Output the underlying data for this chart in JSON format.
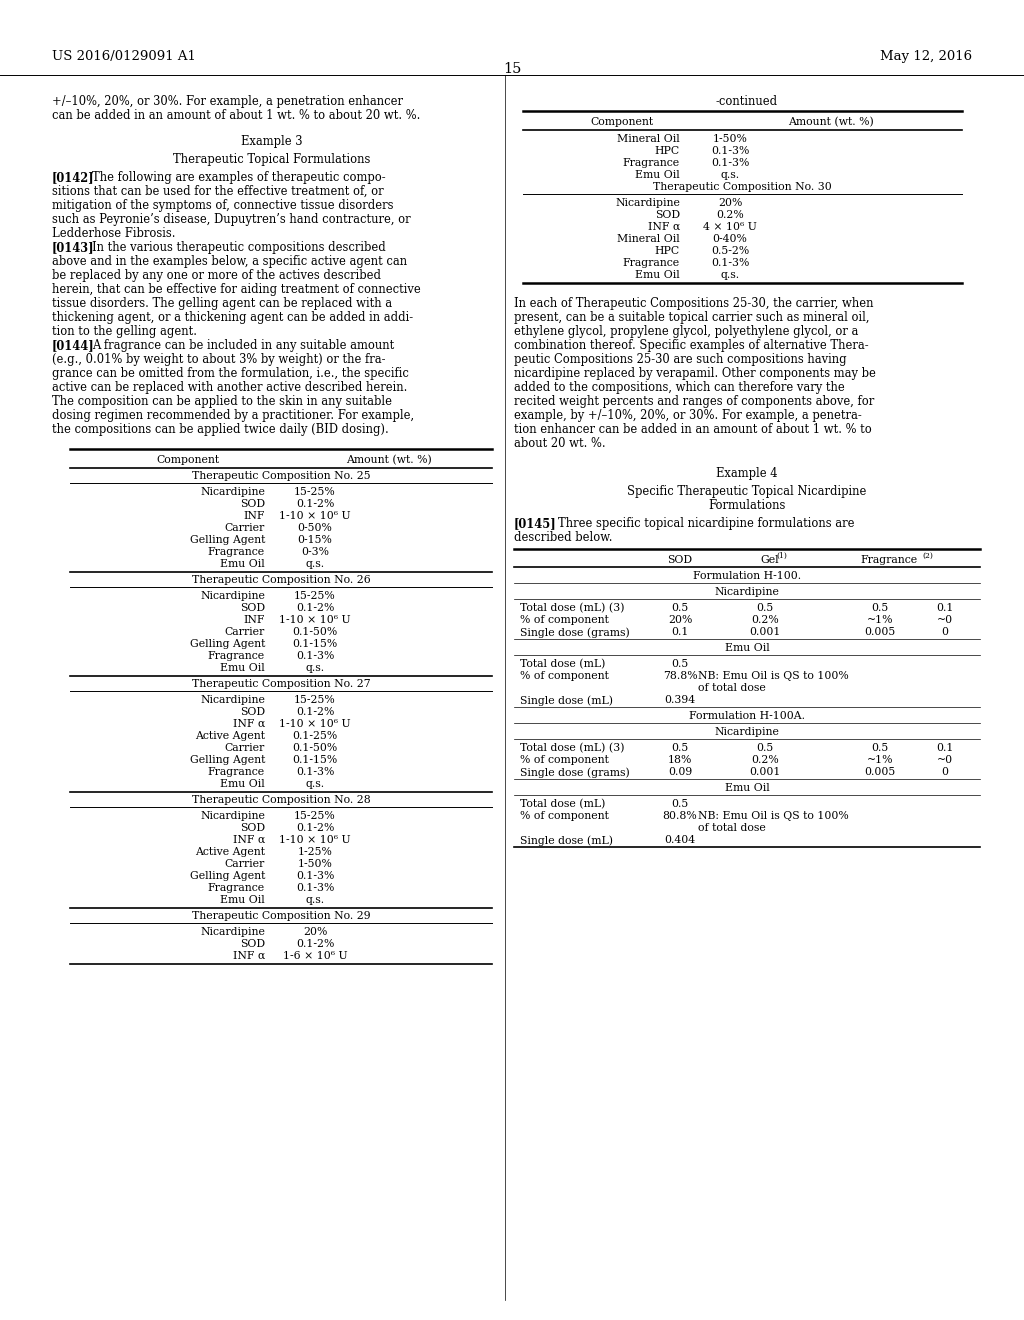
{
  "bg_color": "#ffffff",
  "header_left": "US 2016/0129091 A1",
  "header_right": "May 12, 2016",
  "page_number": "15",
  "left_intro": [
    "+/–10%, 20%, or 30%. For example, a penetration enhancer",
    "can be added in an amount of about 1 wt. % to about 20 wt. %."
  ],
  "example3_title": "Example 3",
  "example3_subtitle": "Therapeutic Topical Formulations",
  "para142_lines": [
    "[0142]    The following are examples of therapeutic compo-",
    "sitions that can be used for the effective treatment of, or",
    "mitigation of the symptoms of, connective tissue disorders",
    "such as Peyronie’s disease, Dupuytren’s hand contracture, or",
    "Ledderhose Fibrosis."
  ],
  "para143_lines": [
    "[0143]    In the various therapeutic compositions described",
    "above and in the examples below, a specific active agent can",
    "be replaced by any one or more of the actives described",
    "herein, that can be effective for aiding treatment of connective",
    "tissue disorders. The gelling agent can be replaced with a",
    "thickening agent, or a thickening agent can be added in addi-",
    "tion to the gelling agent."
  ],
  "para144_lines": [
    "[0144]    A fragrance can be included in any suitable amount",
    "(e.g., 0.01% by weight to about 3% by weight) or the fra-",
    "grance can be omitted from the formulation, i.e., the specific",
    "active can be replaced with another active described herein.",
    "The composition can be applied to the skin in any suitable",
    "dosing regimen recommended by a practitioner. For example,",
    "the compositions can be applied twice daily (BID dosing)."
  ],
  "table1_sections": [
    {
      "title": "Therapeutic Composition No. 25",
      "rows": [
        [
          "Nicardipine",
          "15-25%"
        ],
        [
          "SOD",
          "0.1-2%"
        ],
        [
          "INF",
          "1-10 × 10⁶ U"
        ],
        [
          "Carrier",
          "0-50%"
        ],
        [
          "Gelling Agent",
          "0-15%"
        ],
        [
          "Fragrance",
          "0-3%"
        ],
        [
          "Emu Oil",
          "q.s."
        ]
      ]
    },
    {
      "title": "Therapeutic Composition No. 26",
      "rows": [
        [
          "Nicardipine",
          "15-25%"
        ],
        [
          "SOD",
          "0.1-2%"
        ],
        [
          "INF",
          "1-10 × 10⁶ U"
        ],
        [
          "Carrier",
          "0.1-50%"
        ],
        [
          "Gelling Agent",
          "0.1-15%"
        ],
        [
          "Fragrance",
          "0.1-3%"
        ],
        [
          "Emu Oil",
          "q.s."
        ]
      ]
    },
    {
      "title": "Therapeutic Composition No. 27",
      "rows": [
        [
          "Nicardipine",
          "15-25%"
        ],
        [
          "SOD",
          "0.1-2%"
        ],
        [
          "INF α",
          "1-10 × 10⁶ U"
        ],
        [
          "Active Agent",
          "0.1-25%"
        ],
        [
          "Carrier",
          "0.1-50%"
        ],
        [
          "Gelling Agent",
          "0.1-15%"
        ],
        [
          "Fragrance",
          "0.1-3%"
        ],
        [
          "Emu Oil",
          "q.s."
        ]
      ]
    },
    {
      "title": "Therapeutic Composition No. 28",
      "rows": [
        [
          "Nicardipine",
          "15-25%"
        ],
        [
          "SOD",
          "0.1-2%"
        ],
        [
          "INF α",
          "1-10 × 10⁶ U"
        ],
        [
          "Active Agent",
          "1-25%"
        ],
        [
          "Carrier",
          "1-50%"
        ],
        [
          "Gelling Agent",
          "0.1-3%"
        ],
        [
          "Fragrance",
          "0.1-3%"
        ],
        [
          "Emu Oil",
          "q.s."
        ]
      ]
    },
    {
      "title": "Therapeutic Composition No. 29",
      "rows": [
        [
          "Nicardipine",
          "20%"
        ],
        [
          "SOD",
          "0.1-2%"
        ],
        [
          "INF α",
          "1-6 × 10⁶ U"
        ]
      ]
    }
  ],
  "continued_label": "-continued",
  "table2_rows_cont": [
    [
      "Mineral Oil",
      "1-50%"
    ],
    [
      "HPC",
      "0.1-3%"
    ],
    [
      "Fragrance",
      "0.1-3%"
    ],
    [
      "Emu Oil",
      "q.s."
    ]
  ],
  "table2_section30_title": "Therapeutic Composition No. 30",
  "table2_section30_rows": [
    [
      "Nicardipine",
      "20%"
    ],
    [
      "SOD",
      "0.2%"
    ],
    [
      "INF α",
      "4 × 10⁶ U"
    ],
    [
      "Mineral Oil",
      "0-40%"
    ],
    [
      "HPC",
      "0.5-2%"
    ],
    [
      "Fragrance",
      "0.1-3%"
    ],
    [
      "Emu Oil",
      "q.s."
    ]
  ],
  "right_para_lines": [
    "In each of Therapeutic Compositions 25-30, the carrier, when",
    "present, can be a suitable topical carrier such as mineral oil,",
    "ethylene glycol, propylene glycol, polyethylene glycol, or a",
    "combination thereof. Specific examples of alternative Thera-",
    "peutic Compositions 25-30 are such compositions having",
    "nicardipine replaced by verapamil. Other components may be",
    "added to the compositions, which can therefore vary the",
    "recited weight percents and ranges of components above, for",
    "example, by +/–10%, 20%, or 30%. For example, a penetra-",
    "tion enhancer can be added in an amount of about 1 wt. % to",
    "about 20 wt. %."
  ],
  "example4_title": "Example 4",
  "example4_sub1": "Specific Therapeutic Topical Nicardipine",
  "example4_sub2": "Formulations",
  "para145_line1": "[0145]    Three specific topical nicardipine formulations are",
  "para145_line2": "described below.",
  "t3_col_headers": [
    "SOD",
    "Gel(1)",
    "Fragrance(2)"
  ],
  "t3_h100_title": "Formulation H-100.",
  "t3_nic_header": "Nicardipine",
  "t3_h100_nic_rows": [
    [
      "Total dose (mL) (3)",
      "0.5",
      "0.5",
      "0.5",
      "0.1"
    ],
    [
      "% of component",
      "20%",
      "0.2%",
      "~1%",
      "~0"
    ],
    [
      "Single dose (grams)",
      "0.1",
      "0.001",
      "0.005",
      "0"
    ]
  ],
  "t3_emu_header": "Emu Oil",
  "t3_h100_emu_rows": [
    [
      "Total dose (mL)",
      "0.5"
    ],
    [
      "% of component",
      "78.8%",
      "NB: Emu Oil is QS to 100%"
    ],
    [
      "",
      "",
      "of total dose"
    ],
    [
      "Single dose (mL)",
      "0.394"
    ]
  ],
  "t3_h100a_title": "Formulation H-100A.",
  "t3_h100a_nic_rows": [
    [
      "Total dose (mL) (3)",
      "0.5",
      "0.5",
      "0.5",
      "0.1"
    ],
    [
      "% of component",
      "18%",
      "0.2%",
      "~1%",
      "~0"
    ],
    [
      "Single dose (grams)",
      "0.09",
      "0.001",
      "0.005",
      "0"
    ]
  ],
  "t3_h100a_emu_rows": [
    [
      "Total dose (mL)",
      "0.5"
    ],
    [
      "% of component",
      "80.8%",
      "NB: Emu Oil is QS to 100%"
    ],
    [
      "",
      "",
      "of total dose"
    ],
    [
      "Single dose (mL)",
      "0.404"
    ]
  ]
}
